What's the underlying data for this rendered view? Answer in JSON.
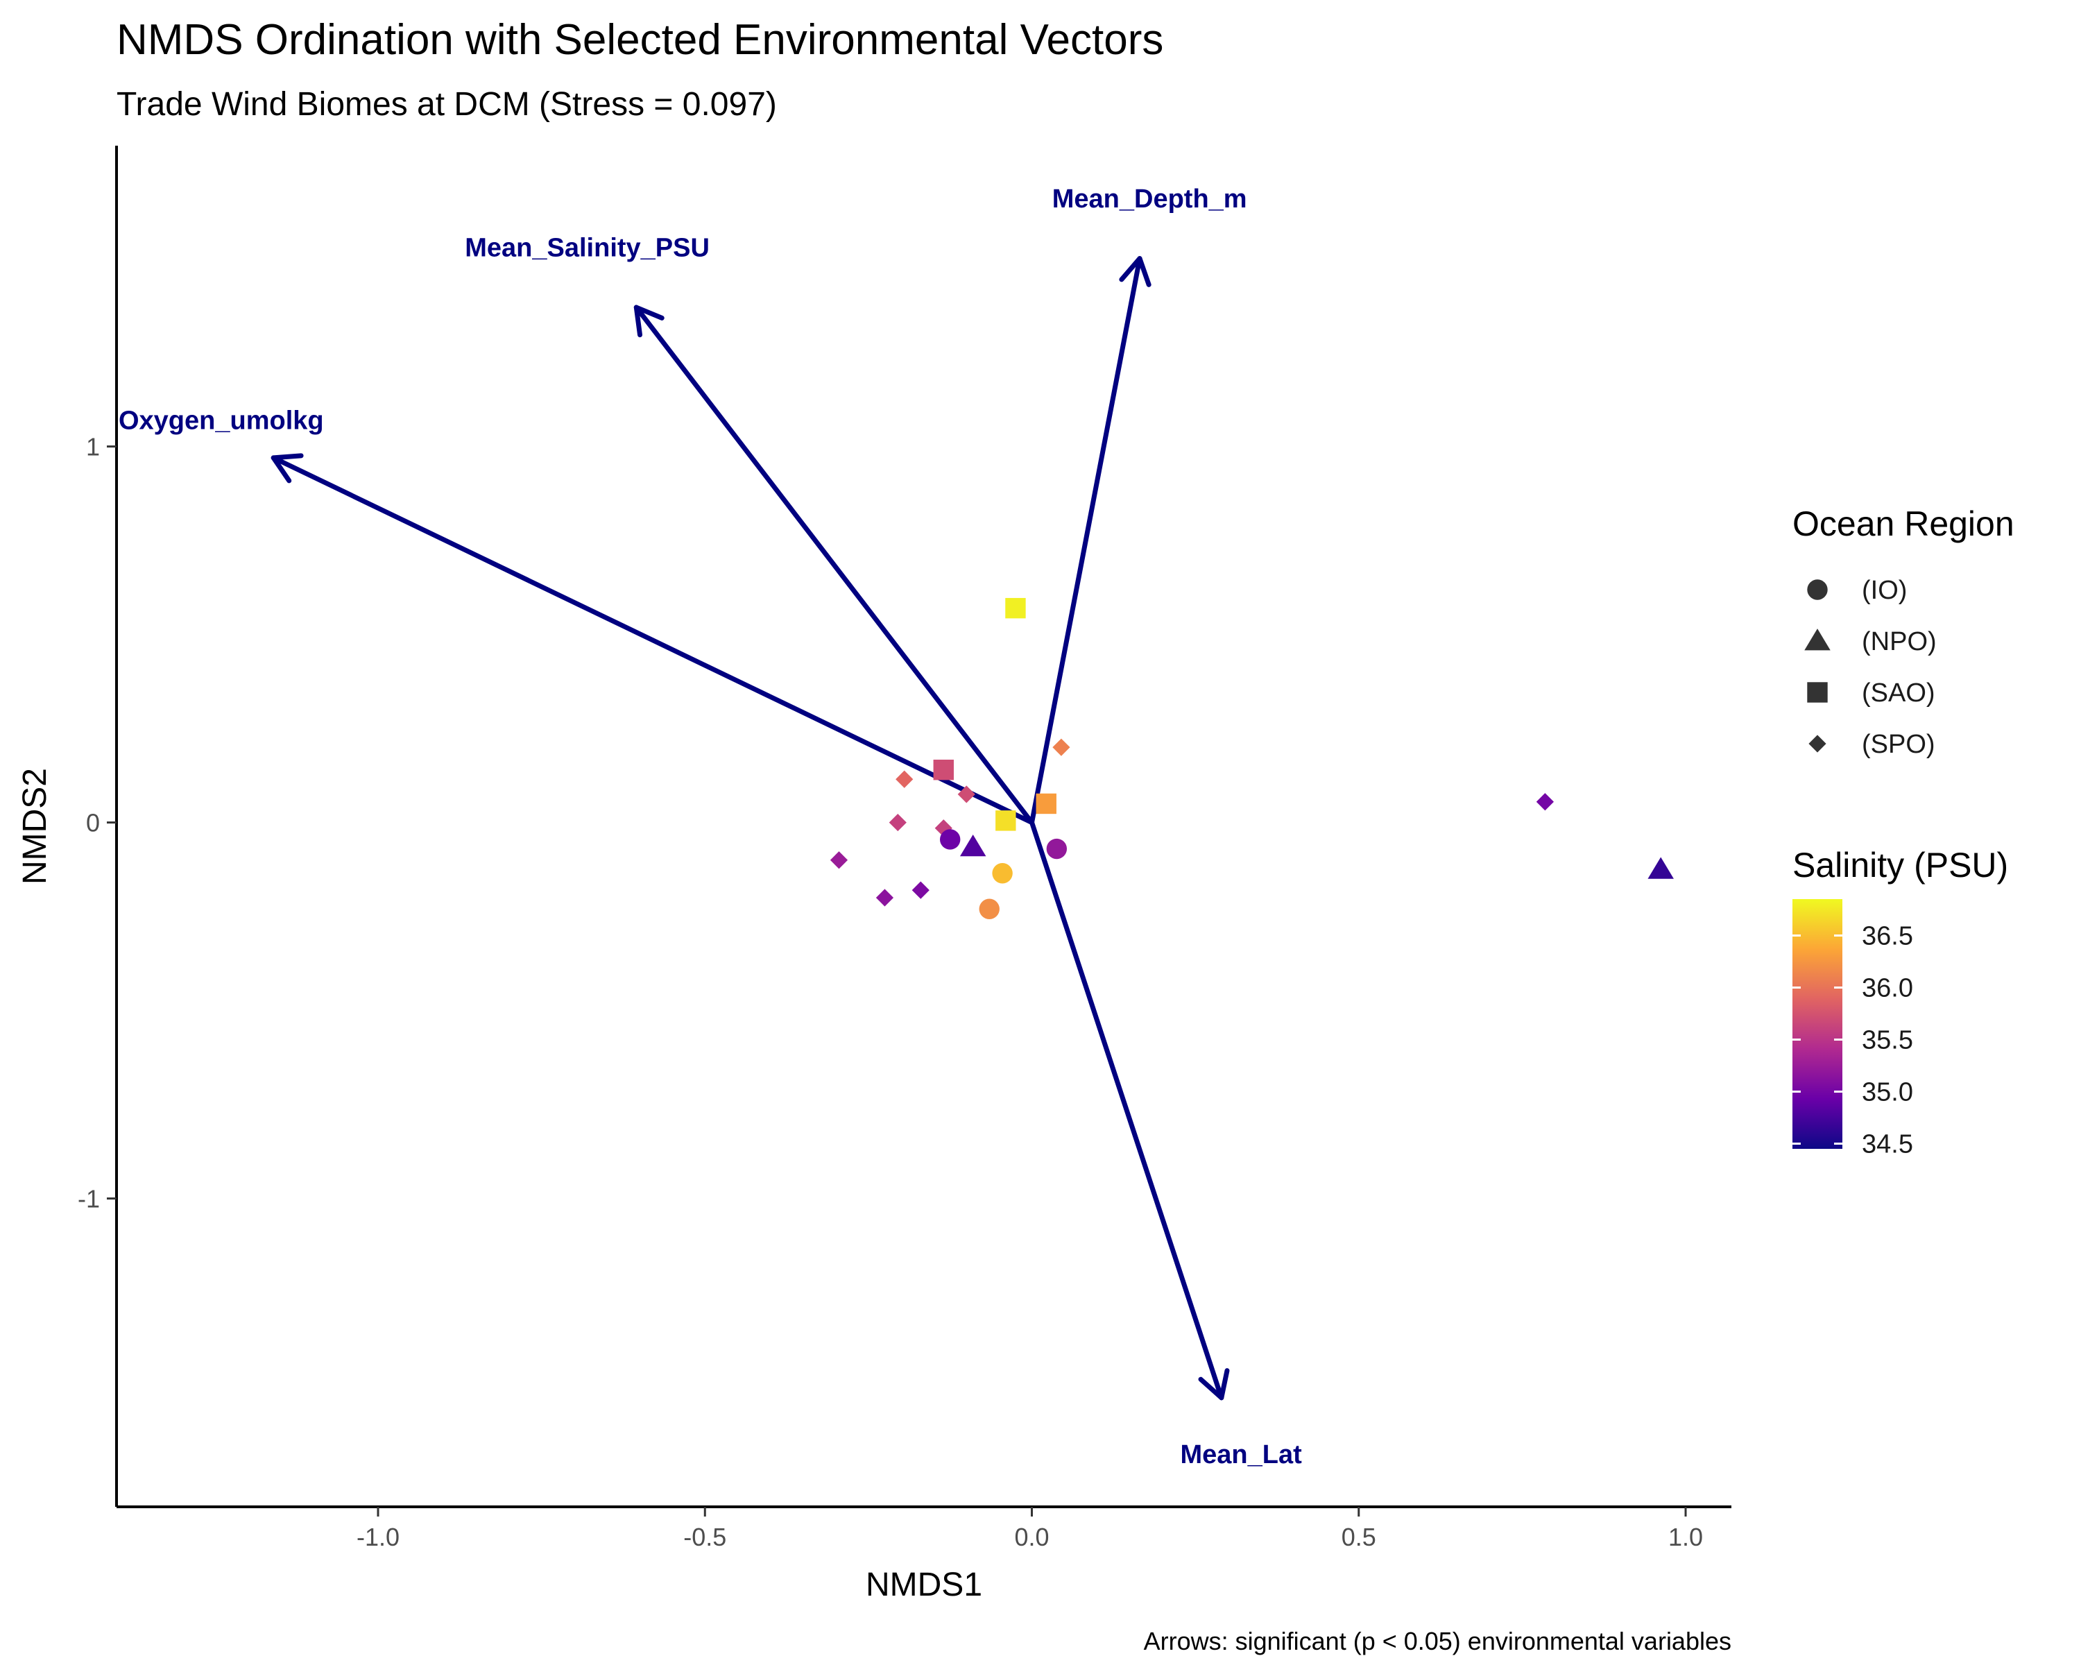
{
  "chart_data": {
    "type": "scatter",
    "title": "NMDS Ordination with Selected Environmental Vectors",
    "subtitle": "Trade Wind Biomes at DCM (Stress = 0.097)",
    "caption": "Arrows: significant (p < 0.05) environmental variables",
    "xlabel": "NMDS1",
    "ylabel": "NMDS2",
    "xlim": [
      -1.4,
      1.07
    ],
    "ylim": [
      -1.82,
      1.8
    ],
    "x_ticks": [
      -1.0,
      -0.5,
      0.0,
      0.5,
      1.0
    ],
    "x_tick_labels": [
      "-1.0",
      "-0.5",
      "0.0",
      "0.5",
      "1.0"
    ],
    "y_ticks": [
      -1,
      0,
      1
    ],
    "y_tick_labels": [
      "-1",
      "0",
      "1"
    ],
    "grid": false,
    "points": [
      {
        "x": -0.025,
        "y": 0.57,
        "region": "(SAO)",
        "salinity": 36.8
      },
      {
        "x": 0.045,
        "y": 0.2,
        "region": "(SPO)",
        "salinity": 36.1
      },
      {
        "x": -0.135,
        "y": 0.14,
        "region": "(SAO)",
        "salinity": 35.7
      },
      {
        "x": -0.195,
        "y": 0.115,
        "region": "(SPO)",
        "salinity": 35.9
      },
      {
        "x": -0.1,
        "y": 0.075,
        "region": "(SPO)",
        "salinity": 35.7
      },
      {
        "x": 0.022,
        "y": 0.05,
        "region": "(SAO)",
        "salinity": 36.3
      },
      {
        "x": -0.205,
        "y": 0.0,
        "region": "(SPO)",
        "salinity": 35.6
      },
      {
        "x": -0.04,
        "y": 0.005,
        "region": "(SAO)",
        "salinity": 36.7
      },
      {
        "x": -0.135,
        "y": -0.015,
        "region": "(SPO)",
        "salinity": 35.6
      },
      {
        "x": -0.125,
        "y": -0.045,
        "region": "(IO)",
        "salinity": 34.95
      },
      {
        "x": -0.09,
        "y": -0.065,
        "region": "(NPO)",
        "salinity": 34.8
      },
      {
        "x": 0.038,
        "y": -0.07,
        "region": "(IO)",
        "salinity": 35.2
      },
      {
        "x": -0.295,
        "y": -0.1,
        "region": "(SPO)",
        "salinity": 35.25
      },
      {
        "x": -0.045,
        "y": -0.135,
        "region": "(IO)",
        "salinity": 36.5
      },
      {
        "x": -0.17,
        "y": -0.18,
        "region": "(SPO)",
        "salinity": 35.05
      },
      {
        "x": -0.225,
        "y": -0.2,
        "region": "(SPO)",
        "salinity": 35.15
      },
      {
        "x": -0.065,
        "y": -0.23,
        "region": "(IO)",
        "salinity": 36.2
      },
      {
        "x": 0.785,
        "y": 0.055,
        "region": "(SPO)",
        "salinity": 35.0
      },
      {
        "x": 0.962,
        "y": -0.125,
        "region": "(NPO)",
        "salinity": 34.65
      }
    ],
    "vectors": [
      {
        "name": "Mean_Depth_m",
        "x": 0.165,
        "y": 1.5,
        "label_x": 0.18,
        "label_y": 1.66
      },
      {
        "name": "Mean_Salinity_PSU",
        "x": -0.605,
        "y": 1.37,
        "label_x": -0.68,
        "label_y": 1.53
      },
      {
        "name": "Oxygen_umolkg",
        "x": -1.16,
        "y": 0.97,
        "label_x": -1.24,
        "label_y": 1.07
      },
      {
        "name": "Mean_Lat",
        "x": 0.29,
        "y": -1.53,
        "label_x": 0.32,
        "label_y": -1.68
      }
    ],
    "legend": {
      "placement": "right",
      "shape_title": "Ocean Region",
      "shapes": [
        {
          "label": "(IO)",
          "shape": "circle"
        },
        {
          "label": "(NPO)",
          "shape": "triangle"
        },
        {
          "label": "(SAO)",
          "shape": "square"
        },
        {
          "label": "(SPO)",
          "shape": "diamond"
        }
      ],
      "color_title": "Salinity (PSU)",
      "color_ticks": [
        36.5,
        36.0,
        35.5,
        35.0,
        34.5
      ],
      "color_tick_labels": [
        "36.5",
        "36.0",
        "35.5",
        "35.0",
        "34.5"
      ],
      "color_range": [
        34.45,
        36.85
      ],
      "palette": "plasma"
    },
    "colors": {
      "vector": "#000080",
      "palette_stops": [
        "#0d0887",
        "#6a00a8",
        "#b12a90",
        "#e16462",
        "#fca636",
        "#f0f921"
      ]
    }
  }
}
